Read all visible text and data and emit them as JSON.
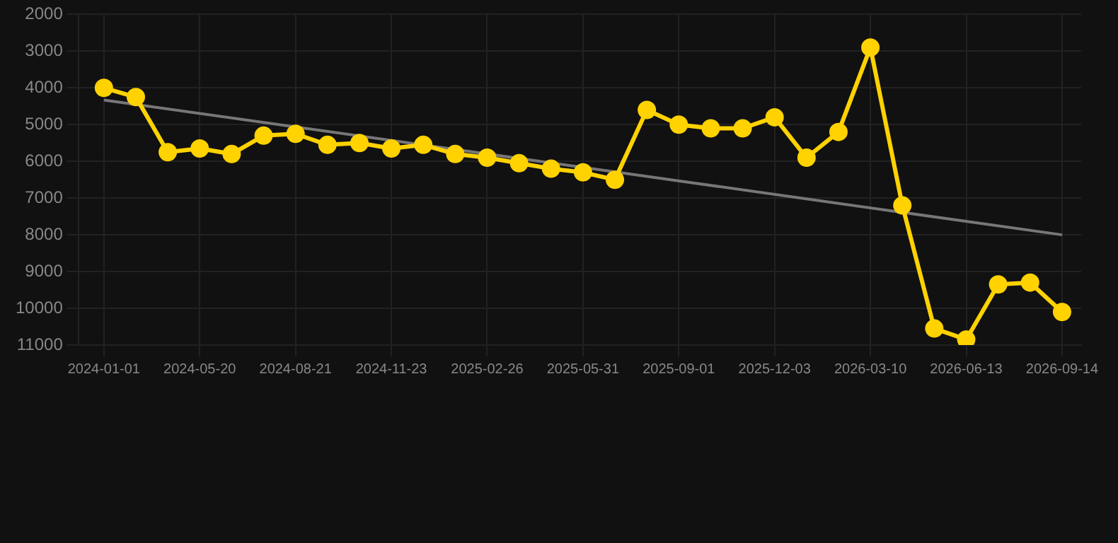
{
  "chart_data": {
    "type": "line",
    "categories": [
      "2024-01-01",
      null,
      null,
      "2024-05-20",
      null,
      null,
      "2024-08-21",
      null,
      null,
      "2024-11-23",
      null,
      null,
      "2025-02-26",
      null,
      null,
      "2025-05-31",
      null,
      null,
      "2025-09-01",
      null,
      null,
      "2025-12-03",
      null,
      null,
      "2026-03-10",
      null,
      null,
      "2026-06-13",
      null,
      null,
      "2026-09-14"
    ],
    "series": [
      {
        "color": "#ffd200",
        "marker": "circle",
        "values": [
          4000,
          4250,
          5750,
          5650,
          5800,
          5300,
          5250,
          5550,
          5500,
          5650,
          5550,
          5800,
          5900,
          6050,
          6200,
          6300,
          6500,
          4600,
          5000,
          5100,
          5100,
          4800,
          5900,
          5200,
          2900,
          7200,
          10550,
          10850,
          9350,
          9300,
          10100
        ]
      },
      {
        "type": "line",
        "color": "#777777",
        "marker": "none",
        "values": [
          4330,
          null,
          null,
          null,
          null,
          null,
          null,
          null,
          null,
          null,
          null,
          null,
          null,
          null,
          null,
          null,
          null,
          null,
          null,
          null,
          null,
          null,
          null,
          null,
          null,
          null,
          null,
          null,
          null,
          null,
          8000
        ]
      }
    ],
    "ylim": [
      11000,
      2000
    ],
    "yticks": [
      2000,
      3000,
      4000,
      5000,
      6000,
      7000,
      8000,
      9000,
      10000,
      11000
    ],
    "grid": true,
    "legend": false
  }
}
